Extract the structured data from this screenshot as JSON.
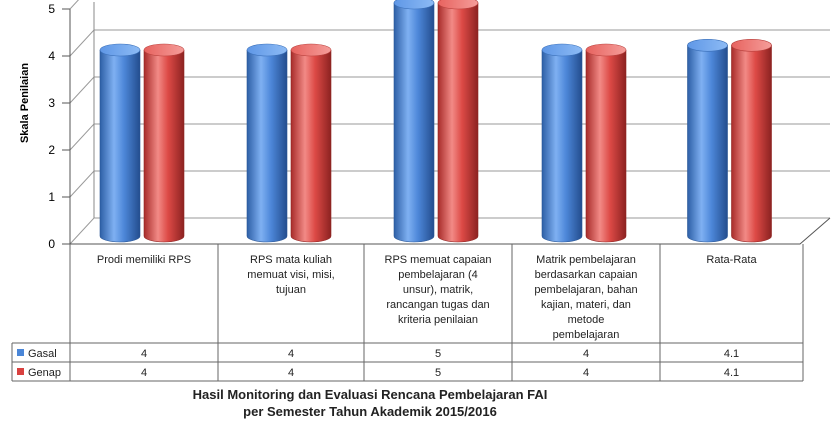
{
  "chart_data": {
    "type": "bar",
    "style": "3d-cylinder",
    "categories": [
      "Prodi memiliki RPS",
      "RPS mata kuliah memuat visi, misi, tujuan",
      "RPS memuat capaian pembelajaran (4 unsur), matrik, rancangan tugas dan kriteria penilaian",
      "Matrik pembelajaran berdasarkan capaian pembelajaran, bahan kajian, materi, dan metode pembelajaran",
      "Rata-Rata"
    ],
    "category_lines": [
      [
        "Prodi memiliki RPS"
      ],
      [
        "RPS mata kuliah",
        "memuat visi, misi,",
        "tujuan"
      ],
      [
        "RPS memuat capaian",
        "pembelajaran (4",
        "unsur), matrik,",
        "rancangan tugas dan",
        "kriteria penilaian"
      ],
      [
        "Matrik pembelajaran",
        "berdasarkan capaian",
        "pembelajaran, bahan",
        "kajian, materi, dan",
        "metode",
        "pembelajaran"
      ],
      [
        "Rata-Rata"
      ]
    ],
    "series": [
      {
        "name": "Gasal",
        "values": [
          4,
          4,
          5,
          4,
          4.1
        ],
        "labels": [
          "4",
          "4",
          "5",
          "4",
          "4.1"
        ],
        "color": "#4a86d8"
      },
      {
        "name": "Genap",
        "values": [
          4,
          4,
          5,
          4,
          4.1
        ],
        "labels": [
          "4",
          "4",
          "5",
          "4",
          "4.1"
        ],
        "color": "#d9413f"
      }
    ],
    "ylabel": "Skala Penilaian",
    "ylim": [
      0,
      5
    ],
    "yticks": [
      "0",
      "1",
      "2",
      "3",
      "4",
      "5"
    ],
    "grid": true,
    "legend": "data-table-left",
    "caption_lines": [
      "Hasil Monitoring dan Evaluasi Rencana Pembelajaran FAI",
      "per Semester Tahun Akademik 2015/2016"
    ]
  }
}
